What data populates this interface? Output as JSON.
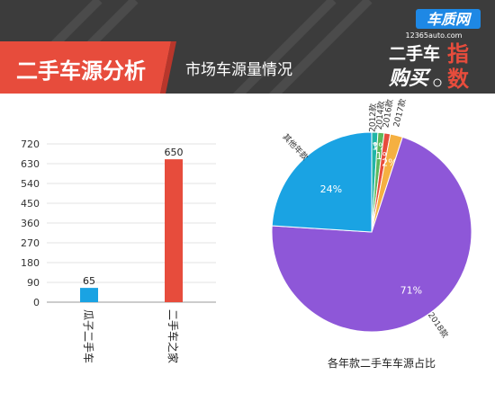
{
  "header": {
    "section_title": "二手车源分析",
    "subtitle": "市场车源量情况",
    "logo_top": "车质网",
    "logo_url": "12365auto.com",
    "logo_line1": "二手车",
    "logo_line1_accent": "指",
    "logo_line2": "购买",
    "logo_line2_accent": "数"
  },
  "colors": {
    "header_bg": "#3c3c3c",
    "accent_red": "#e74c3c",
    "bar_blue": "#1aa3e3",
    "bar_red": "#e74c3c",
    "pie_purple": "#8e57d8",
    "pie_blue": "#1aa3e3",
    "pie_red": "#e74c3c",
    "pie_orange": "#f5b041",
    "pie_teal": "#20b5a8",
    "pie_green": "#5cb85c"
  },
  "chart_data": [
    {
      "type": "bar",
      "categories": [
        "瓜子二手车",
        "二手车之家"
      ],
      "values": [
        65,
        650
      ],
      "data_labels": [
        "65",
        "650"
      ],
      "ylim": [
        0,
        720
      ],
      "yticks": [
        "0",
        "90",
        "180",
        "270",
        "360",
        "450",
        "540",
        "630",
        "720"
      ],
      "bar_colors": [
        "#1aa3e3",
        "#e74c3c"
      ],
      "grid": true
    },
    {
      "type": "pie",
      "title": "各年款二手车车源占比",
      "slices": [
        {
          "label": "2012款",
          "value": 1,
          "pct_label": "1%",
          "color": "#20b5a8"
        },
        {
          "label": "2014款",
          "value": 1,
          "pct_label": "1%",
          "color": "#5cb85c"
        },
        {
          "label": "2016款",
          "value": 1,
          "pct_label": "1%",
          "color": "#e74c3c"
        },
        {
          "label": "2017款",
          "value": 2,
          "pct_label": "2%",
          "color": "#f5b041"
        },
        {
          "label": "2018款",
          "value": 71,
          "pct_label": "71%",
          "color": "#8e57d8"
        },
        {
          "label": "其他年款",
          "value": 24,
          "pct_label": "24%",
          "color": "#1aa3e3"
        }
      ]
    }
  ]
}
